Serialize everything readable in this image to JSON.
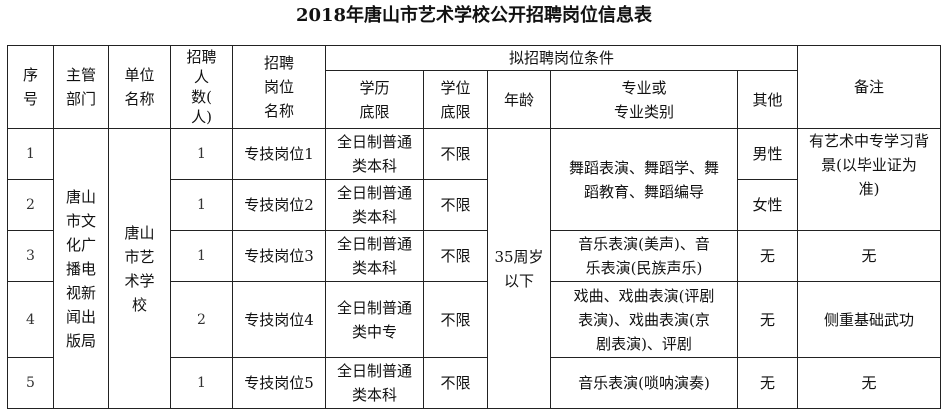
{
  "title": "2018年唐山市艺术学校公开招聘岗位信息表",
  "headers": {
    "seq": "序\n号",
    "dept": "主管\n部门",
    "unit": "单位\n名称",
    "count": "招聘\n人\n数(\n人)",
    "position": "招聘\n岗位\n名称",
    "conditions": "拟招聘岗位条件",
    "education": "学历\n底限",
    "degree": "学位\n底限",
    "age": "年龄",
    "major": "专业或\n专业类别",
    "other": "其他",
    "remarks": "备注"
  },
  "shared": {
    "dept": "唐山\n市文\n化广\n播电\n视新\n闻出\n版局",
    "unit": "唐山\n市艺\n术学\n校",
    "age": "35周岁\n以下"
  },
  "rows": [
    {
      "seq": "1",
      "count": "1",
      "position": "专技岗位1",
      "education": "全日制普通\n类本科",
      "degree": "不限",
      "other": "男性"
    },
    {
      "seq": "2",
      "count": "1",
      "position": "专技岗位2",
      "education": "全日制普通\n类本科",
      "degree": "不限",
      "other": "女性"
    },
    {
      "seq": "3",
      "count": "1",
      "position": "专技岗位3",
      "education": "全日制普通\n类本科",
      "degree": "不限",
      "major": "音乐表演(美声)、音\n乐表演(民族声乐)",
      "other": "无",
      "remarks": "无"
    },
    {
      "seq": "4",
      "count": "2",
      "position": "专技岗位4",
      "education": "全日制普通\n类中专",
      "degree": "不限",
      "major": "戏曲、戏曲表演(评剧\n表演)、戏曲表演(京\n剧表演)、评剧",
      "other": "无",
      "remarks": "侧重基础武功"
    },
    {
      "seq": "5",
      "count": "1",
      "position": "专技岗位5",
      "education": "全日制普通\n类本科",
      "degree": "不限",
      "major": "音乐表演(唢呐演奏)",
      "other": "无",
      "remarks": "无"
    }
  ],
  "merged": {
    "major_1_2": "舞蹈表演、舞蹈学、舞\n蹈教育、舞蹈编导",
    "remarks_1_2": "有艺术中专学习背\n景(以毕业证为\n准)"
  }
}
